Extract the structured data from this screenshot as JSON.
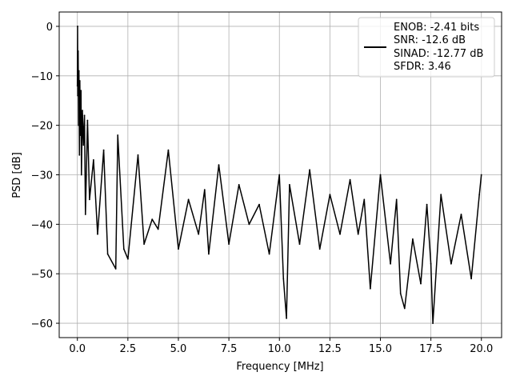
{
  "chart_data": {
    "type": "line",
    "title": "",
    "xlabel": "Frequency [MHz]",
    "ylabel": "PSD [dB]",
    "xlim": [
      -0.9,
      21.0
    ],
    "ylim": [
      -62.9,
      2.9
    ],
    "x_ticks": [
      0.0,
      2.5,
      5.0,
      7.5,
      10.0,
      12.5,
      15.0,
      17.5,
      20.0
    ],
    "x_tick_labels": [
      "0.0",
      "2.5",
      "5.0",
      "7.5",
      "10.0",
      "12.5",
      "15.0",
      "17.5",
      "20.0"
    ],
    "y_ticks": [
      0,
      -10,
      -20,
      -30,
      -40,
      -50,
      -60
    ],
    "y_tick_labels": [
      "0",
      "−10",
      "−20",
      "−30",
      "−40",
      "−50",
      "−60"
    ],
    "grid": true,
    "legend_position": "top-right",
    "line_color": "#000000",
    "legend": {
      "lines": [
        "ENOB: -2.41 bits",
        "SNR: -12.6 dB",
        "SINAD: -12.77 dB",
        "SFDR: 3.46"
      ]
    },
    "series": [
      {
        "x": [
          0.0,
          0.01,
          0.02,
          0.04,
          0.06,
          0.08,
          0.1,
          0.12,
          0.15,
          0.18,
          0.2,
          0.25,
          0.3,
          0.35,
          0.4,
          0.5,
          0.6,
          0.8,
          1.0,
          1.3,
          1.5,
          1.9,
          2.0,
          2.3,
          2.5,
          3.0,
          3.3,
          3.7,
          4.0,
          4.5,
          5.0,
          5.5,
          6.0,
          6.3,
          6.5,
          7.0,
          7.5,
          8.0,
          8.5,
          9.0,
          9.5,
          10.0,
          10.2,
          10.35,
          10.5,
          11.0,
          11.5,
          12.0,
          12.5,
          13.0,
          13.5,
          13.9,
          14.2,
          14.5,
          15.0,
          15.5,
          15.8,
          16.0,
          16.2,
          16.6,
          17.0,
          17.3,
          17.5,
          17.6,
          18.0,
          18.5,
          19.0,
          19.5,
          19.9,
          20.0
        ],
        "y": [
          -12,
          0,
          -14,
          -5,
          -20,
          -9,
          -26,
          -11,
          -22,
          -13,
          -30,
          -17,
          -24,
          -18,
          -38,
          -19,
          -35,
          -27,
          -42,
          -25,
          -46,
          -49,
          -22,
          -45,
          -47,
          -26,
          -44,
          -39,
          -41,
          -25,
          -45,
          -35,
          -42,
          -33,
          -46,
          -28,
          -44,
          -32,
          -40,
          -36,
          -46,
          -30,
          -51,
          -59,
          -32,
          -44,
          -29,
          -45,
          -34,
          -42,
          -31,
          -42,
          -35,
          -53,
          -30,
          -48,
          -35,
          -54,
          -57,
          -43,
          -52,
          -36,
          -48,
          -60,
          -34,
          -48,
          -38,
          -51,
          -34,
          -30
        ]
      }
    ]
  }
}
